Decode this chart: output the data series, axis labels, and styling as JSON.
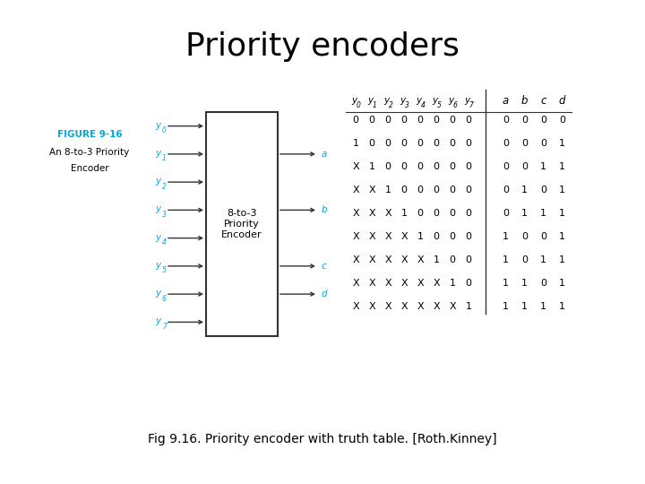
{
  "title": "Priority encoders",
  "title_fontsize": 26,
  "title_fontweight": "normal",
  "caption": "Fig 9.16. Priority encoder with truth table. [Roth.Kinney]",
  "caption_fontsize": 10,
  "figure_label": "FIGURE 9-16",
  "figure_label_color": "#00AADD",
  "figure_desc1": "An 8-to-3 Priority",
  "figure_desc2": "Encoder",
  "box_text": "8-to-3\nPriority\nEncoder",
  "inputs": [
    "y",
    "y",
    "y",
    "y",
    "y",
    "y",
    "y",
    "y"
  ],
  "input_subs": [
    "0",
    "1",
    "2",
    "3",
    "4",
    "5",
    "6",
    "7"
  ],
  "outputs_abc": [
    "a",
    "b",
    "c"
  ],
  "output_d": "d",
  "truth_header_in": [
    "y",
    "y",
    "y",
    "y",
    "y",
    "y",
    "y",
    "y"
  ],
  "truth_header_in_subs": [
    "0",
    "1",
    "2",
    "3",
    "4",
    "5",
    "6",
    "7"
  ],
  "truth_header_out": [
    "a",
    "b",
    "c",
    "d"
  ],
  "truth_rows": [
    [
      "0",
      "0",
      "0",
      "0",
      "0",
      "0",
      "0",
      "0",
      "0",
      "0",
      "0",
      "0"
    ],
    [
      "1",
      "0",
      "0",
      "0",
      "0",
      "0",
      "0",
      "0",
      "0",
      "0",
      "0",
      "1"
    ],
    [
      "X",
      "1",
      "0",
      "0",
      "0",
      "0",
      "0",
      "0",
      "0",
      "0",
      "1",
      "1"
    ],
    [
      "X",
      "X",
      "1",
      "0",
      "0",
      "0",
      "0",
      "0",
      "0",
      "1",
      "0",
      "1"
    ],
    [
      "X",
      "X",
      "X",
      "1",
      "0",
      "0",
      "0",
      "0",
      "0",
      "1",
      "1",
      "1"
    ],
    [
      "X",
      "X",
      "X",
      "X",
      "1",
      "0",
      "0",
      "0",
      "1",
      "0",
      "0",
      "1"
    ],
    [
      "X",
      "X",
      "X",
      "X",
      "X",
      "1",
      "0",
      "0",
      "1",
      "0",
      "1",
      "1"
    ],
    [
      "X",
      "X",
      "X",
      "X",
      "X",
      "X",
      "1",
      "0",
      "1",
      "1",
      "0",
      "1"
    ],
    [
      "X",
      "X",
      "X",
      "X",
      "X",
      "X",
      "X",
      "1",
      "1",
      "1",
      "1",
      "1"
    ]
  ],
  "bg_color": "#ffffff",
  "text_color": "#000000",
  "cyan_color": "#00AADD",
  "line_color": "#333333",
  "box_border_color": "#333333"
}
